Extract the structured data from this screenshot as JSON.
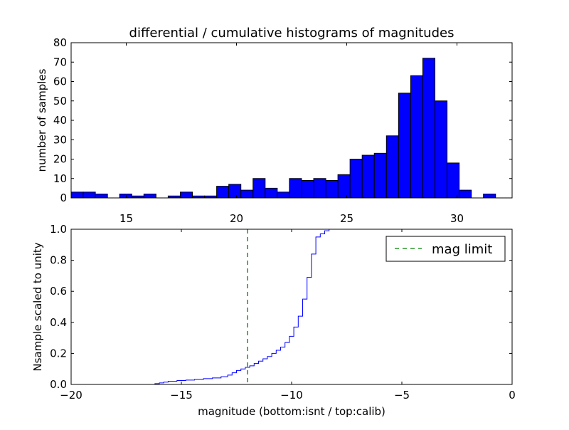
{
  "chart_data": [
    {
      "type": "bar",
      "title": "differential / cumulative histograms of magnitudes",
      "ylabel": "number of samples",
      "xlabel": "",
      "xlim": [
        12.5,
        32.5
      ],
      "ylim": [
        0,
        80
      ],
      "xticks": [
        15,
        20,
        25,
        30
      ],
      "xtick_position": "top",
      "yticks": [
        0,
        10,
        20,
        30,
        40,
        50,
        60,
        70,
        80
      ],
      "bar_color": "#0000ff",
      "bins": [
        {
          "x0": 12.5,
          "x1": 13.05,
          "value": 3
        },
        {
          "x0": 13.05,
          "x1": 13.6,
          "value": 3
        },
        {
          "x0": 13.6,
          "x1": 14.15,
          "value": 2
        },
        {
          "x0": 14.15,
          "x1": 14.7,
          "value": 0
        },
        {
          "x0": 14.7,
          "x1": 15.25,
          "value": 2
        },
        {
          "x0": 15.25,
          "x1": 15.8,
          "value": 1
        },
        {
          "x0": 15.8,
          "x1": 16.35,
          "value": 2
        },
        {
          "x0": 16.35,
          "x1": 16.9,
          "value": 0
        },
        {
          "x0": 16.9,
          "x1": 17.45,
          "value": 1
        },
        {
          "x0": 17.45,
          "x1": 18.0,
          "value": 3
        },
        {
          "x0": 18.0,
          "x1": 18.55,
          "value": 1
        },
        {
          "x0": 18.55,
          "x1": 19.1,
          "value": 1
        },
        {
          "x0": 19.1,
          "x1": 19.65,
          "value": 6
        },
        {
          "x0": 19.65,
          "x1": 20.2,
          "value": 7
        },
        {
          "x0": 20.2,
          "x1": 20.75,
          "value": 4
        },
        {
          "x0": 20.75,
          "x1": 21.3,
          "value": 10
        },
        {
          "x0": 21.3,
          "x1": 21.85,
          "value": 5
        },
        {
          "x0": 21.85,
          "x1": 22.4,
          "value": 3
        },
        {
          "x0": 22.4,
          "x1": 22.95,
          "value": 10
        },
        {
          "x0": 22.95,
          "x1": 23.5,
          "value": 9
        },
        {
          "x0": 23.5,
          "x1": 24.05,
          "value": 10
        },
        {
          "x0": 24.05,
          "x1": 24.6,
          "value": 9
        },
        {
          "x0": 24.6,
          "x1": 25.15,
          "value": 12
        },
        {
          "x0": 25.15,
          "x1": 25.7,
          "value": 20
        },
        {
          "x0": 25.7,
          "x1": 26.25,
          "value": 22
        },
        {
          "x0": 26.25,
          "x1": 26.8,
          "value": 23
        },
        {
          "x0": 26.8,
          "x1": 27.35,
          "value": 32
        },
        {
          "x0": 27.35,
          "x1": 27.9,
          "value": 54
        },
        {
          "x0": 27.9,
          "x1": 28.45,
          "value": 63
        },
        {
          "x0": 28.45,
          "x1": 29.0,
          "value": 72
        },
        {
          "x0": 29.0,
          "x1": 29.55,
          "value": 50
        },
        {
          "x0": 29.55,
          "x1": 30.1,
          "value": 18
        },
        {
          "x0": 30.1,
          "x1": 30.65,
          "value": 4
        },
        {
          "x0": 30.65,
          "x1": 31.2,
          "value": 0
        },
        {
          "x0": 31.2,
          "x1": 31.75,
          "value": 2
        }
      ]
    },
    {
      "type": "line",
      "title": "",
      "ylabel": "Nsample scaled to unity",
      "xlabel": "magnitude (bottom:isnt / top:calib)",
      "xlim": [
        -20,
        0
      ],
      "ylim": [
        0,
        1
      ],
      "xticks": [
        -20,
        -15,
        -10,
        -5,
        0
      ],
      "xtick_labels": [
        "−20",
        "−15",
        "−10",
        "−5",
        "0"
      ],
      "yticks": [
        0,
        0.2,
        0.4,
        0.6,
        0.8,
        1.0
      ],
      "ytick_labels": [
        "0.0",
        "0.2",
        "0.4",
        "0.6",
        "0.8",
        "1.0"
      ],
      "legend": {
        "position": "top-right",
        "entries": [
          "mag limit"
        ]
      },
      "series": [
        {
          "style": "step",
          "color": "#0000ff",
          "x": [
            -20.0,
            -16.2,
            -16.0,
            -15.8,
            -15.6,
            -15.2,
            -14.8,
            -14.4,
            -14.0,
            -13.6,
            -13.2,
            -12.9,
            -12.7,
            -12.5,
            -12.3,
            -12.1,
            -11.9,
            -11.7,
            -11.5,
            -11.3,
            -11.1,
            -10.9,
            -10.7,
            -10.5,
            -10.3,
            -10.1,
            -9.9,
            -9.7,
            -9.5,
            -9.3,
            -9.1,
            -8.9,
            -8.7,
            -8.5,
            -8.3,
            -8.1,
            -7.9,
            -7.7
          ],
          "y": [
            0.0,
            0.005,
            0.01,
            0.015,
            0.02,
            0.025,
            0.028,
            0.032,
            0.037,
            0.042,
            0.05,
            0.06,
            0.075,
            0.09,
            0.1,
            0.11,
            0.12,
            0.135,
            0.15,
            0.165,
            0.18,
            0.2,
            0.22,
            0.24,
            0.27,
            0.31,
            0.37,
            0.44,
            0.55,
            0.69,
            0.84,
            0.95,
            0.97,
            0.99,
            1.0,
            1.0,
            1.0,
            1.0
          ]
        },
        {
          "name": "mag limit",
          "style": "dashed-vertical",
          "color": "#008000",
          "x": -12.0
        }
      ]
    }
  ]
}
